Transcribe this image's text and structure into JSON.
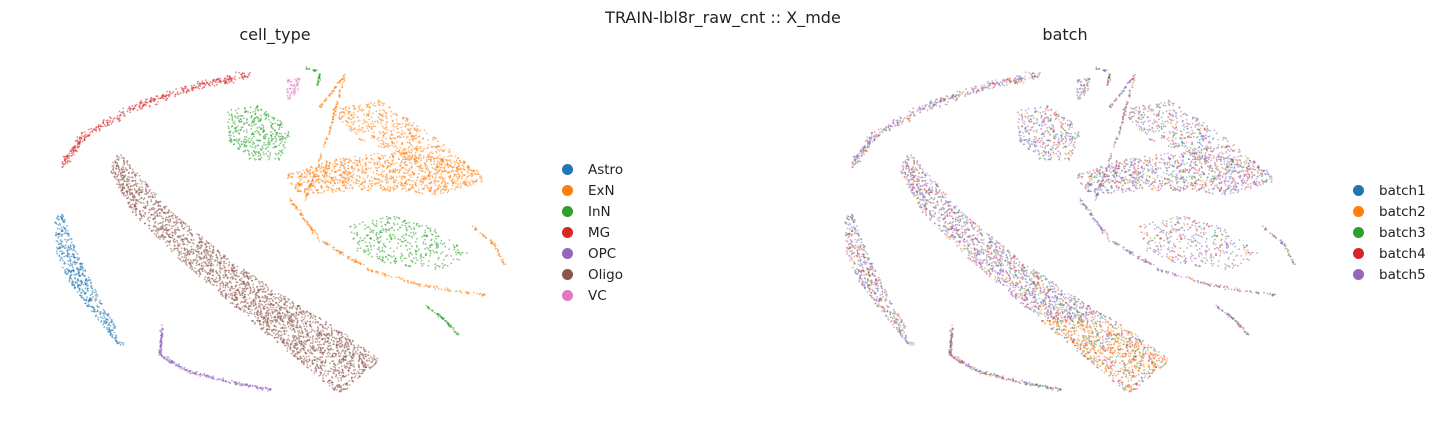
{
  "figure_title": "TRAIN-lbl8r_raw_cnt :: X_mde",
  "chart_data": [
    {
      "type": "scatter",
      "title": "cell_type",
      "xlabel": "",
      "ylabel": "",
      "axes_visible": false,
      "legend_position": "right",
      "series": [
        {
          "name": "Astro",
          "color": "#1f77b4"
        },
        {
          "name": "ExN",
          "color": "#ff7f0e"
        },
        {
          "name": "InN",
          "color": "#2ca02c"
        },
        {
          "name": "MG",
          "color": "#d62728"
        },
        {
          "name": "OPC",
          "color": "#9467bd"
        },
        {
          "name": "Oligo",
          "color": "#8c564b"
        },
        {
          "name": "VC",
          "color": "#e377c2"
        }
      ]
    },
    {
      "type": "scatter",
      "title": "batch",
      "xlabel": "",
      "ylabel": "",
      "axes_visible": false,
      "legend_position": "right",
      "series": [
        {
          "name": "batch1",
          "color": "#1f77b4"
        },
        {
          "name": "batch2",
          "color": "#ff7f0e"
        },
        {
          "name": "batch3",
          "color": "#2ca02c"
        },
        {
          "name": "batch4",
          "color": "#d62728"
        },
        {
          "name": "batch5",
          "color": "#9467bd"
        }
      ]
    }
  ]
}
